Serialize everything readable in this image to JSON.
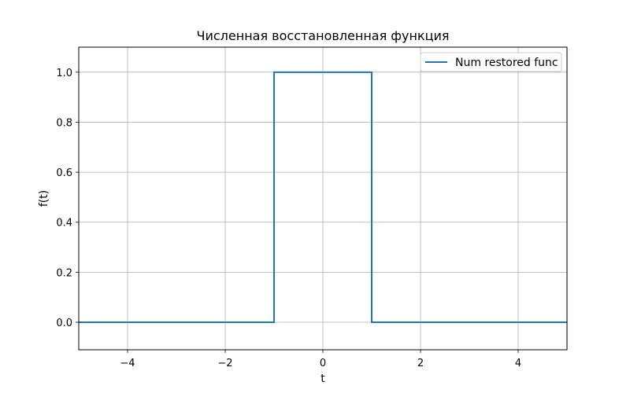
{
  "chart_data": {
    "type": "line",
    "title": "Численная восстановленная функция",
    "xlabel": "t",
    "ylabel": "f(t)",
    "xlim": [
      -5,
      5
    ],
    "ylim": [
      -0.11,
      1.1
    ],
    "x_ticks": [
      -4,
      -2,
      0,
      2,
      4
    ],
    "x_tick_labels": [
      "−4",
      "−2",
      "0",
      "2",
      "4"
    ],
    "y_ticks": [
      0.0,
      0.2,
      0.4,
      0.6,
      0.8,
      1.0
    ],
    "y_tick_labels": [
      "0.0",
      "0.2",
      "0.4",
      "0.6",
      "0.8",
      "1.0"
    ],
    "grid": true,
    "legend_position": "top-right",
    "series": [
      {
        "name": "Num restored func",
        "color": "#1f77b4",
        "x": [
          -5,
          -1,
          -1,
          1,
          1,
          5
        ],
        "y": [
          0,
          0,
          1,
          1,
          0,
          0
        ]
      }
    ]
  }
}
